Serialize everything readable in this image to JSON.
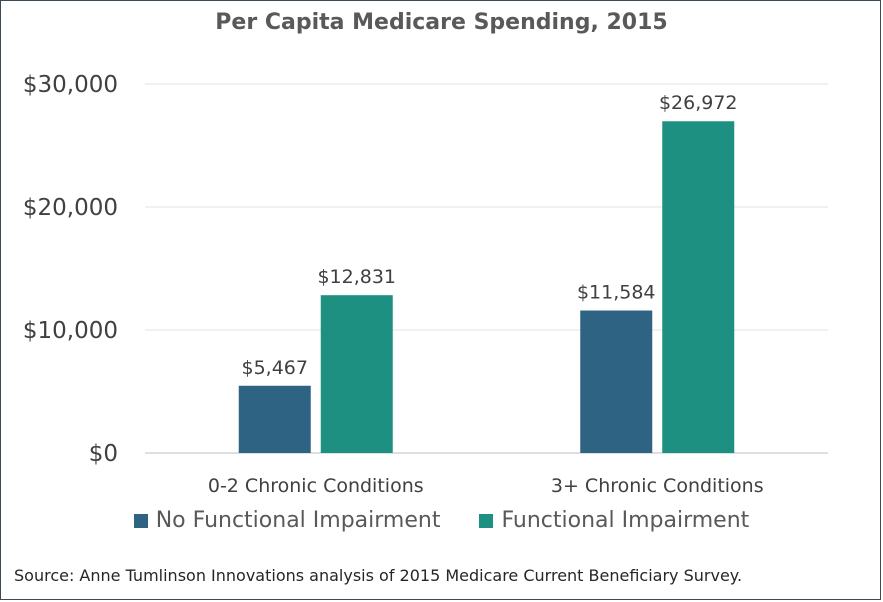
{
  "chart_data": {
    "type": "bar",
    "title": "Per Capita Medicare Spending, 2015",
    "categories": [
      "0-2 Chronic Conditions",
      "3+ Chronic Conditions"
    ],
    "series": [
      {
        "name": "No Functional Impairment",
        "values": [
          5467,
          11584
        ],
        "labels": [
          "$5,467",
          "$11,584"
        ],
        "color": "#2e6384"
      },
      {
        "name": "Functional Impairment",
        "values": [
          12831,
          26972
        ],
        "labels": [
          "$12,831",
          "$26,972"
        ],
        "color": "#1e9082"
      }
    ],
    "ylim": [
      0,
      30000
    ],
    "yticks": [
      0,
      10000,
      20000,
      30000
    ],
    "ytick_labels": [
      "$0",
      "$10,000",
      "$20,000",
      "$30,000"
    ],
    "grid": true,
    "legend_position": "bottom"
  },
  "source": "Source: Anne Tumlinson Innovations analysis of 2015 Medicare Current Beneficiary Survey."
}
